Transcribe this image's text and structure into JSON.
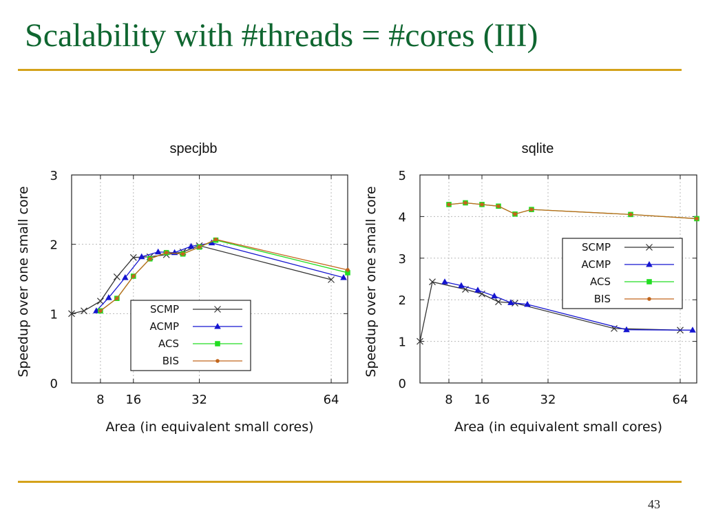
{
  "slide": {
    "title": "Scalability with #threads = #cores (III)",
    "page_number": "43"
  },
  "chart_data": [
    {
      "type": "line",
      "title": "specjbb",
      "xlabel": "Area (in equivalent small cores)",
      "ylabel": "Speedup over one small core",
      "xlim": [
        1,
        68
      ],
      "ylim": [
        0,
        3
      ],
      "xticks": [
        8,
        16,
        32,
        64
      ],
      "yticks": [
        0,
        1,
        2,
        3
      ],
      "grid": true,
      "legend_position": "bottom-right",
      "series": [
        {
          "name": "SCMP",
          "color": "#333333",
          "marker": "x",
          "x": [
            1,
            4,
            8,
            12,
            16,
            20,
            24,
            28,
            32,
            64
          ],
          "y": [
            1.0,
            1.04,
            1.18,
            1.53,
            1.81,
            1.82,
            1.85,
            1.89,
            1.98,
            1.49
          ]
        },
        {
          "name": "ACMP",
          "color": "#1515d0",
          "marker": "triangle",
          "x": [
            7,
            10,
            14,
            18,
            22,
            26,
            30,
            35,
            67
          ],
          "y": [
            1.04,
            1.23,
            1.52,
            1.82,
            1.89,
            1.88,
            1.97,
            2.02,
            1.52
          ]
        },
        {
          "name": "ACS",
          "color": "#22dd22",
          "marker": "square",
          "x": [
            8,
            12,
            16,
            20,
            24,
            28,
            32,
            36,
            68
          ],
          "y": [
            1.04,
            1.22,
            1.54,
            1.79,
            1.88,
            1.86,
            1.96,
            2.06,
            1.59
          ]
        },
        {
          "name": "BIS",
          "color": "#c2661c",
          "marker": "dot",
          "x": [
            8,
            12,
            16,
            20,
            24,
            28,
            32,
            36,
            68
          ],
          "y": [
            1.04,
            1.22,
            1.54,
            1.79,
            1.88,
            1.86,
            1.96,
            2.07,
            1.63
          ]
        }
      ]
    },
    {
      "type": "line",
      "title": "sqlite",
      "xlabel": "Area (in equivalent small cores)",
      "ylabel": "Speedup over one small core",
      "xlim": [
        1,
        68
      ],
      "ylim": [
        0,
        5
      ],
      "xticks": [
        8,
        16,
        32,
        64
      ],
      "yticks": [
        0,
        1,
        2,
        3,
        4,
        5
      ],
      "grid": true,
      "legend_position": "center-right",
      "series": [
        {
          "name": "SCMP",
          "color": "#333333",
          "marker": "x",
          "x": [
            1,
            4,
            12,
            16,
            20,
            24,
            48,
            64
          ],
          "y": [
            1.0,
            2.43,
            2.25,
            2.14,
            1.95,
            1.92,
            1.31,
            1.27
          ]
        },
        {
          "name": "ACMP",
          "color": "#1515d0",
          "marker": "triangle",
          "x": [
            7,
            11,
            15,
            19,
            23,
            27,
            51,
            67
          ],
          "y": [
            2.43,
            2.34,
            2.23,
            2.09,
            1.93,
            1.89,
            1.28,
            1.27
          ]
        },
        {
          "name": "ACS",
          "color": "#22dd22",
          "marker": "square",
          "x": [
            8,
            12,
            16,
            20,
            24,
            28,
            52,
            68
          ],
          "y": [
            4.29,
            4.33,
            4.29,
            4.25,
            4.06,
            4.17,
            4.05,
            3.95
          ]
        },
        {
          "name": "BIS",
          "color": "#c2661c",
          "marker": "dot",
          "x": [
            8,
            12,
            16,
            20,
            24,
            28,
            52,
            68
          ],
          "y": [
            4.29,
            4.33,
            4.29,
            4.25,
            4.06,
            4.17,
            4.05,
            3.95
          ]
        }
      ]
    }
  ]
}
